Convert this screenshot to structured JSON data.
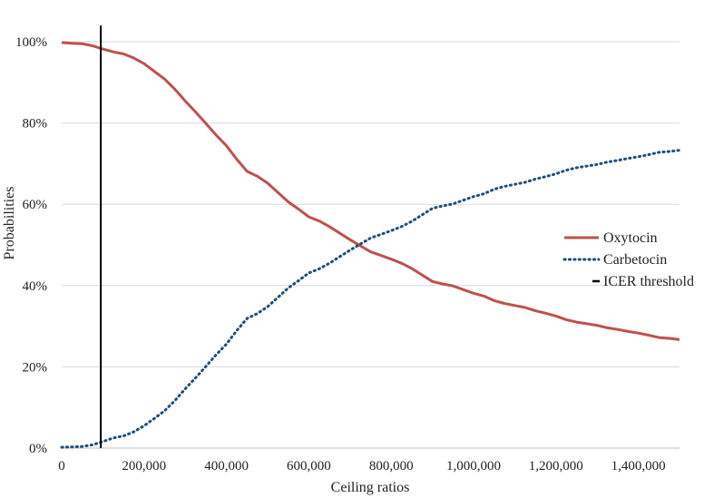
{
  "chart_data": {
    "type": "line",
    "title": "",
    "xlabel": "Ceiling ratios",
    "ylabel": "Probabilities",
    "xlim": [
      0,
      1500000
    ],
    "ylim": [
      0,
      100
    ],
    "x_ticks": [
      0,
      200000,
      400000,
      600000,
      800000,
      1000000,
      1200000,
      1400000
    ],
    "x_tick_labels": [
      "0",
      "200,000",
      "400,000",
      "600,000",
      "800,000",
      "1,000,000",
      "1,200,000",
      "1,400,000"
    ],
    "y_ticks": [
      0,
      20,
      40,
      60,
      80,
      100
    ],
    "y_tick_labels": [
      "0%",
      "20%",
      "40%",
      "60%",
      "80%",
      "100%"
    ],
    "grid": "horizontal",
    "legend_position": "right",
    "series": [
      {
        "name": "Oxytocin",
        "color": "#c0504d",
        "style": "solid",
        "x": [
          0,
          25000,
          50000,
          75000,
          100000,
          125000,
          150000,
          175000,
          200000,
          225000,
          250000,
          275000,
          300000,
          325000,
          350000,
          375000,
          400000,
          425000,
          450000,
          475000,
          500000,
          525000,
          550000,
          575000,
          600000,
          625000,
          650000,
          675000,
          700000,
          725000,
          750000,
          775000,
          800000,
          825000,
          850000,
          875000,
          900000,
          925000,
          950000,
          975000,
          1000000,
          1025000,
          1050000,
          1075000,
          1100000,
          1125000,
          1150000,
          1175000,
          1200000,
          1225000,
          1250000,
          1275000,
          1300000,
          1325000,
          1350000,
          1375000,
          1400000,
          1425000,
          1450000,
          1475000,
          1500000
        ],
        "values": [
          99.8,
          99.6,
          99.5,
          99.0,
          98.2,
          97.5,
          97.0,
          96.0,
          94.6,
          92.7,
          90.8,
          88.3,
          85.4,
          82.7,
          79.9,
          77.0,
          74.4,
          71.1,
          68.1,
          66.9,
          65.2,
          62.9,
          60.6,
          58.8,
          56.9,
          55.9,
          54.5,
          52.9,
          51.3,
          49.8,
          48.3,
          47.4,
          46.5,
          45.5,
          44.2,
          42.6,
          41.0,
          40.4,
          39.9,
          39.0,
          38.1,
          37.4,
          36.3,
          35.6,
          35.1,
          34.6,
          33.8,
          33.2,
          32.5,
          31.6,
          31.0,
          30.6,
          30.2,
          29.6,
          29.2,
          28.7,
          28.3,
          27.8,
          27.2,
          27.0,
          26.7
        ]
      },
      {
        "name": "Carbetocin",
        "color": "#1f4e79",
        "style": "dotted",
        "x": [
          0,
          25000,
          50000,
          75000,
          100000,
          125000,
          150000,
          175000,
          200000,
          225000,
          250000,
          275000,
          300000,
          325000,
          350000,
          375000,
          400000,
          425000,
          450000,
          475000,
          500000,
          525000,
          550000,
          575000,
          600000,
          625000,
          650000,
          675000,
          700000,
          725000,
          750000,
          775000,
          800000,
          825000,
          850000,
          875000,
          900000,
          925000,
          950000,
          975000,
          1000000,
          1025000,
          1050000,
          1075000,
          1100000,
          1125000,
          1150000,
          1175000,
          1200000,
          1225000,
          1250000,
          1275000,
          1300000,
          1325000,
          1350000,
          1375000,
          1400000,
          1425000,
          1450000,
          1475000,
          1500000
        ],
        "values": [
          0.2,
          0.3,
          0.4,
          0.8,
          1.6,
          2.5,
          3.0,
          4.0,
          5.5,
          7.3,
          9.2,
          11.7,
          14.6,
          17.3,
          20.1,
          23.0,
          25.6,
          28.9,
          31.9,
          33.1,
          34.8,
          37.1,
          39.4,
          41.2,
          43.1,
          44.1,
          45.5,
          47.1,
          48.7,
          50.2,
          51.7,
          52.6,
          53.5,
          54.5,
          55.8,
          57.4,
          59.0,
          59.6,
          60.1,
          61.0,
          61.9,
          62.6,
          63.7,
          64.4,
          64.9,
          65.4,
          66.2,
          66.8,
          67.5,
          68.4,
          69.0,
          69.4,
          69.8,
          70.4,
          70.8,
          71.3,
          71.7,
          72.2,
          72.8,
          73.0,
          73.3
        ]
      },
      {
        "name": "ICER threshold",
        "color": "#000000",
        "style": "vertical",
        "x": [
          95000,
          95000
        ],
        "values": [
          0,
          104
        ]
      }
    ]
  }
}
